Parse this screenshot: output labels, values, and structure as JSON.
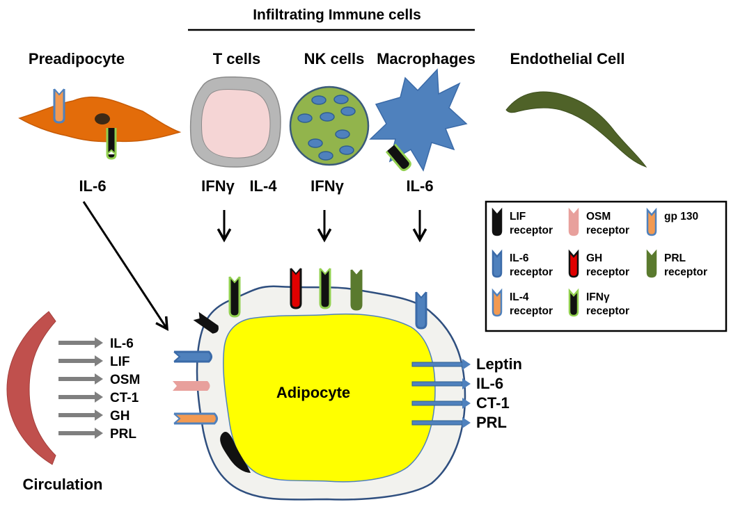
{
  "header": "Infiltrating  Immune cells",
  "cells": {
    "preadipocyte": {
      "title": "Preadipocyte",
      "cytokine": "IL-6"
    },
    "t_cells": {
      "title": "T cells",
      "cytokine_1": "IFNγ",
      "cytokine_2": "IL-4"
    },
    "nk_cells": {
      "title": "NK cells",
      "cytokine": "IFNγ"
    },
    "macrophages": {
      "title": "Macrophages",
      "cytokine": "IL-6"
    },
    "endothelial": {
      "title": "Endothelial Cell"
    }
  },
  "adipocyte": {
    "label": "Adipocyte",
    "outputs": [
      "Leptin",
      "IL-6",
      "CT-1",
      "PRL"
    ]
  },
  "circulation": {
    "label": "Circulation",
    "inputs": [
      "IL-6",
      "LIF",
      "OSM",
      "CT-1",
      "GH",
      "PRL"
    ]
  },
  "legend": [
    {
      "line1": "LIF",
      "line2": "receptor",
      "icon": "lif-receptor-icon",
      "body": "#111111",
      "rim": "#111111"
    },
    {
      "line1": "OSM",
      "line2": "receptor",
      "icon": "osm-receptor-icon",
      "body": "#e8a09c",
      "rim": "#e8a09c"
    },
    {
      "line1": "gp 130",
      "line2": "",
      "icon": "gp130-icon",
      "body": "#f29a52",
      "rim": "#4f81bd"
    },
    {
      "line1": "IL-6",
      "line2": "receptor",
      "icon": "il6-receptor-icon",
      "body": "#4f81bd",
      "rim": "#3a6aa8"
    },
    {
      "line1": "GH",
      "line2": "receptor",
      "icon": "gh-receptor-icon",
      "body": "#e00000",
      "rim": "#111111"
    },
    {
      "line1": "PRL",
      "line2": "receptor",
      "icon": "prl-receptor-icon",
      "body": "#5a7a2e",
      "rim": "#5a7a2e"
    },
    {
      "line1": "IL-4",
      "line2": "receptor",
      "icon": "il4-receptor-icon",
      "body": "#f29a52",
      "rim": "#4f81bd"
    },
    {
      "line1": "IFNγ",
      "line2": "receptor",
      "icon": "ifng-receptor-icon",
      "body": "#111111",
      "rim": "#92d050"
    }
  ],
  "colors": {
    "preadipocyte": "#e36c0a",
    "t_cell_outer": "#b7b7b7",
    "t_cell_inner": "#f5d5d5",
    "nk_cell": "#92b44c",
    "macrophage": "#4f81bd",
    "endothelial": "#4f6228",
    "adipocyte_outer": "#f2f2ee",
    "adipocyte_inner": "#ffff00",
    "circulation": "#c0504d",
    "arrow_gray": "#7f7f7f",
    "arrow_blue": "#3a6aa8"
  }
}
